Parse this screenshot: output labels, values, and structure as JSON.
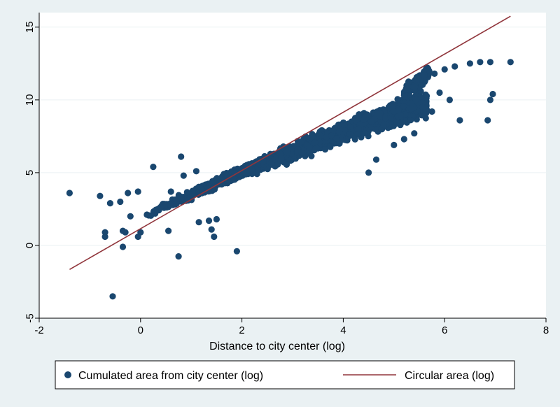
{
  "chart_data": {
    "type": "scatter",
    "title": "",
    "xlabel": "Distance to city center (log)",
    "ylabel": "",
    "xlim": [
      -2,
      8
    ],
    "ylim": [
      -5,
      16
    ],
    "xticks": [
      -2,
      0,
      2,
      4,
      6,
      8
    ],
    "yticks": [
      -5,
      0,
      5,
      10,
      15
    ],
    "grid": "horizontal",
    "legend_position": "bottom",
    "colors": {
      "scatter": "#1a476f",
      "line": "#90353b",
      "plot_bg": "#ffffff",
      "outer_bg": "#eaf1f3",
      "grid": "#eaf1f3"
    },
    "series": [
      {
        "name": "Cumulated area from city center (log)",
        "kind": "scatter",
        "points": [
          [
            -1.4,
            3.6
          ],
          [
            -0.8,
            3.4
          ],
          [
            -0.6,
            2.9
          ],
          [
            -0.4,
            3.0
          ],
          [
            -0.25,
            3.6
          ],
          [
            -0.05,
            3.7
          ],
          [
            -0.7,
            0.9
          ],
          [
            -0.7,
            0.6
          ],
          [
            -0.35,
            1.0
          ],
          [
            -0.3,
            0.9
          ],
          [
            -0.35,
            -0.1
          ],
          [
            -0.55,
            -3.5
          ],
          [
            0.0,
            0.9
          ],
          [
            -0.05,
            0.6
          ],
          [
            -0.2,
            2.0
          ],
          [
            0.25,
            5.4
          ],
          [
            0.55,
            1.0
          ],
          [
            0.75,
            -0.75
          ],
          [
            1.15,
            1.6
          ],
          [
            1.35,
            1.7
          ],
          [
            1.4,
            1.1
          ],
          [
            1.45,
            0.6
          ],
          [
            1.5,
            1.8
          ],
          [
            1.9,
            -0.4
          ],
          [
            0.6,
            3.7
          ],
          [
            0.8,
            6.1
          ],
          [
            0.85,
            4.8
          ],
          [
            1.1,
            5.1
          ],
          [
            4.5,
            5.0
          ],
          [
            4.65,
            5.9
          ],
          [
            5.0,
            6.9
          ],
          [
            5.2,
            7.3
          ],
          [
            5.4,
            7.7
          ],
          [
            6.3,
            8.6
          ],
          [
            6.85,
            8.6
          ],
          [
            6.9,
            10.0
          ],
          [
            6.95,
            10.4
          ],
          [
            6.5,
            12.5
          ],
          [
            6.7,
            12.6
          ],
          [
            6.9,
            12.6
          ],
          [
            7.3,
            12.6
          ],
          [
            5.6,
            11.7
          ],
          [
            5.8,
            11.8
          ],
          [
            6.0,
            12.1
          ],
          [
            6.2,
            12.3
          ],
          [
            6.1,
            10.0
          ],
          [
            5.9,
            10.5
          ],
          [
            5.75,
            9.2
          ]
        ]
      },
      {
        "name": "Circular area (log)",
        "kind": "line",
        "points": [
          [
            -1.4,
            -1.65
          ],
          [
            7.3,
            15.75
          ]
        ]
      }
    ]
  }
}
